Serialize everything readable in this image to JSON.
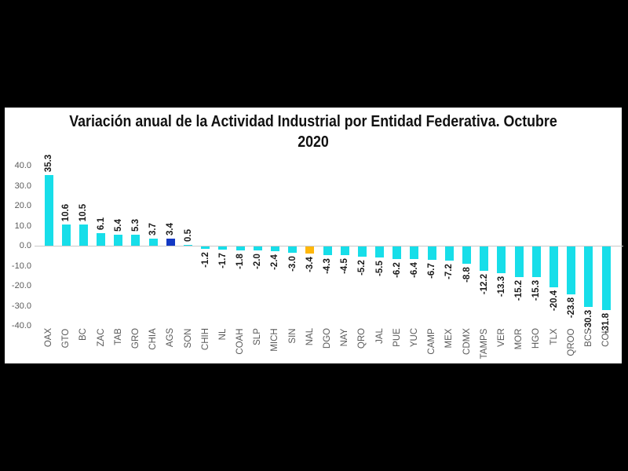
{
  "title": {
    "line1": "Variación anual de la Actividad Industrial por Entidad Federativa. Octubre",
    "line2": "2020"
  },
  "chart_data": {
    "type": "bar",
    "title": "Variación anual de la Actividad Industrial por Entidad Federativa. Octubre 2020",
    "categories": [
      "OAX",
      "GTO",
      "BC",
      "ZAC",
      "TAB",
      "GRO",
      "CHIA",
      "AGS",
      "SON",
      "CHIH",
      "NL",
      "COAH",
      "SLP",
      "MICH",
      "SIN",
      "NAL",
      "DGO",
      "NAY",
      "QRO",
      "JAL",
      "PUE",
      "YUC",
      "CAMP",
      "MEX",
      "CDMX",
      "TAMPS",
      "VER",
      "MOR",
      "HGO",
      "TLX",
      "QROO",
      "BCS",
      "COL"
    ],
    "values": [
      35.3,
      10.6,
      10.5,
      6.1,
      5.4,
      5.3,
      3.7,
      3.4,
      0.5,
      -1.2,
      -1.7,
      -1.8,
      -2.0,
      -2.4,
      -3.0,
      -3.4,
      -4.3,
      -4.5,
      -5.2,
      -5.5,
      -6.2,
      -6.4,
      -6.7,
      -7.2,
      -8.8,
      -12.2,
      -13.3,
      -15.2,
      -15.3,
      -20.4,
      -23.8,
      -30.3,
      -31.8
    ],
    "ytick_labels": [
      "40.0",
      "30.0",
      "20.0",
      "10.0",
      "0.0",
      "-10.0",
      "-20.0",
      "-30.0",
      "-40.0"
    ],
    "ytick_values": [
      40,
      30,
      20,
      10,
      0,
      -10,
      -20,
      -30,
      -40
    ],
    "ylim": [
      -40,
      40
    ],
    "xlabel": "",
    "ylabel": "",
    "gridlines": "zero-axis-only",
    "legend": "none",
    "bar_colors": {
      "default": "#17dee9",
      "AGS": "#1339c4",
      "NAL": "#ffb70a"
    },
    "axis_label_color": "#595959",
    "value_label_color": "#1a1a1a"
  }
}
